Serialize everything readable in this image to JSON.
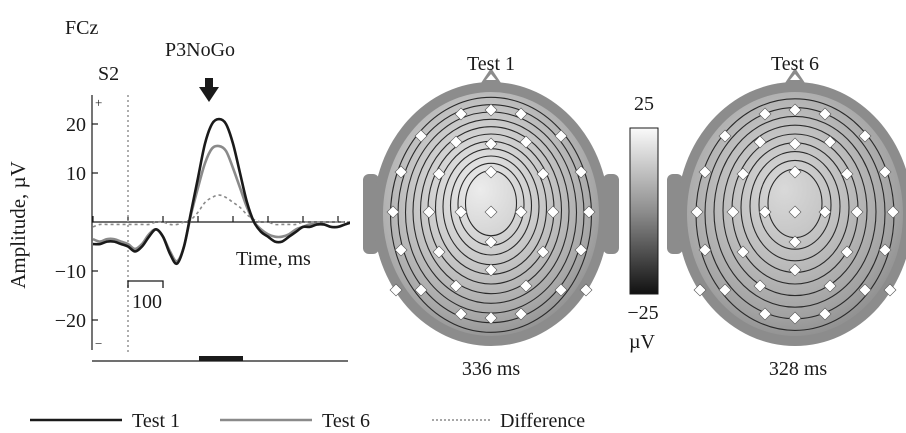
{
  "figure": {
    "channel_label": "FCz",
    "component_label": "P3NoGo",
    "stimulus_label": "S2",
    "amplitude_axis": {
      "label": "Amplitude, µV",
      "ticks": [
        {
          "value": 20,
          "label": "20"
        },
        {
          "value": 10,
          "label": "10"
        },
        {
          "value": -10,
          "label": "−10"
        },
        {
          "value": -20,
          "label": "−20"
        }
      ],
      "plus_sign": "+",
      "minus_sign": "−"
    },
    "time_axis": {
      "label": "Time, ms"
    },
    "scale_bar_label": "100",
    "maps": [
      {
        "title": "Test 1",
        "latency": "336 ms",
        "max_level": 0.85
      },
      {
        "title": "Test 6",
        "latency": "328 ms",
        "max_level": 0.65
      }
    ],
    "colorbar": {
      "max_label": "25",
      "min_label": "−25",
      "unit_label": "µV"
    },
    "legend": [
      {
        "label": "Test 1",
        "color": "#1a1a1a",
        "dash": "solid"
      },
      {
        "label": "Test 6",
        "color": "#8a8a8a",
        "dash": "solid"
      },
      {
        "label": "Difference",
        "color": "#8a8a8a",
        "dash": "dotted"
      }
    ]
  },
  "chart_data": {
    "type": "line",
    "xlabel": "Time, ms",
    "ylabel": "Amplitude, µV",
    "ylim": [
      -27,
      27
    ],
    "xlim": [
      -100,
      700
    ],
    "series": [
      {
        "name": "Test 1",
        "x": [
          -100,
          -80,
          -60,
          -40,
          -20,
          0,
          20,
          40,
          60,
          80,
          100,
          120,
          140,
          160,
          180,
          200,
          220,
          240,
          260,
          280,
          300,
          320,
          340,
          360,
          380,
          400,
          420,
          440,
          460,
          480,
          500,
          520,
          540,
          560,
          580,
          600,
          620,
          640,
          660,
          680,
          700
        ],
        "y": [
          -4.5,
          -4.5,
          -4,
          -4,
          -4.5,
          -5,
          -6,
          -5,
          -3,
          -1.5,
          -3,
          -6.5,
          -8.5,
          -5,
          2,
          9,
          16,
          20,
          21,
          20,
          16,
          10,
          4,
          0,
          -2,
          -3,
          -4,
          -4,
          -3,
          -2,
          -1,
          -1,
          -0.5,
          -0.5,
          -1,
          -1,
          -0.5,
          0,
          0.5,
          0,
          0
        ]
      },
      {
        "name": "Test 6",
        "x": [
          -100,
          -80,
          -60,
          -40,
          -20,
          0,
          20,
          40,
          60,
          80,
          100,
          120,
          140,
          160,
          180,
          200,
          220,
          240,
          260,
          280,
          300,
          320,
          340,
          360,
          380,
          400,
          420,
          440,
          460,
          480,
          500,
          520,
          540,
          560,
          580,
          600,
          620,
          640,
          660,
          680,
          700
        ],
        "y": [
          -3.5,
          -4,
          -3.5,
          -3.5,
          -4,
          -4.5,
          -5.5,
          -4.5,
          -2.5,
          -1.5,
          -3,
          -6,
          -8,
          -5,
          1.5,
          7,
          12,
          15,
          15.5,
          14.5,
          11,
          7,
          3,
          0,
          -1.5,
          -2.5,
          -3,
          -3,
          -2.5,
          -1.5,
          -1,
          -0.5,
          -0.5,
          -0.5,
          -1,
          -1,
          -0.5,
          0,
          0.5,
          0.5,
          0
        ]
      },
      {
        "name": "Difference",
        "x": [
          -100,
          -80,
          -60,
          -40,
          -20,
          0,
          20,
          40,
          60,
          80,
          100,
          120,
          140,
          160,
          180,
          200,
          220,
          240,
          260,
          280,
          300,
          320,
          340,
          360,
          380,
          400,
          420,
          440,
          460,
          480,
          500,
          520,
          540,
          560,
          580,
          600,
          620,
          640,
          660,
          680,
          700
        ],
        "y": [
          -1,
          -0.5,
          -0.5,
          -0.5,
          -0.5,
          -0.5,
          -0.5,
          -0.5,
          -0.5,
          0,
          0,
          -0.5,
          -0.5,
          0,
          0.5,
          2,
          4,
          5,
          5.5,
          5,
          4,
          3,
          1.5,
          0.5,
          0,
          0,
          -0.5,
          -0.5,
          -0.5,
          -0.5,
          0,
          0,
          0,
          0,
          0,
          0,
          0,
          0,
          0,
          0,
          0
        ]
      }
    ]
  }
}
